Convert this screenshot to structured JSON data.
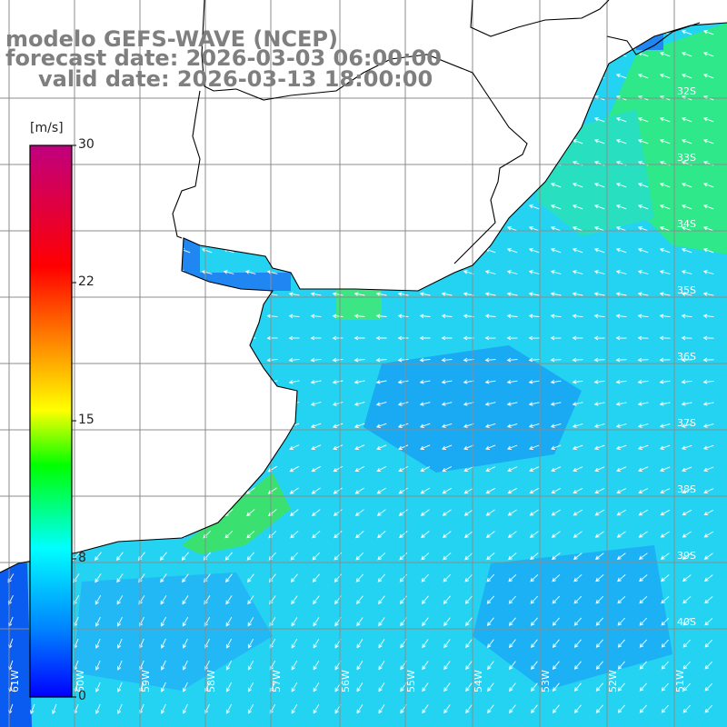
{
  "header": {
    "model_line": "modelo GEFS-WAVE (NCEP)",
    "forecast_line": "forecast date: 2026-03-03 06:00:00",
    "valid_line": "valid date: 2026-03-13 18:00:00"
  },
  "colorbar": {
    "unit_label": "[m/s]",
    "ticks": [
      {
        "label": "30",
        "value": 30
      },
      {
        "label": "22",
        "value": 22
      },
      {
        "label": "15",
        "value": 15
      },
      {
        "label": "8",
        "value": 8
      },
      {
        "label": "0",
        "value": 0
      }
    ],
    "colors": [
      "#0000ff",
      "#0080ff",
      "#00ffff",
      "#00ff00",
      "#ffff00",
      "#ff8000",
      "#ff0000",
      "#c0007f"
    ]
  },
  "map": {
    "land_color": "#ffffff",
    "grid_color": "#8c8c8c",
    "coast_color": "#000000",
    "wind_arrow_color": "#ffffff",
    "lat_labels": [
      "32S",
      "33S",
      "34S",
      "35S",
      "36S",
      "37S",
      "38S",
      "39S",
      "40S"
    ],
    "lon_labels": [
      "61W",
      "60W",
      "59W",
      "58W",
      "57W",
      "56W",
      "55W",
      "54W",
      "53W",
      "52W",
      "51W"
    ]
  }
}
